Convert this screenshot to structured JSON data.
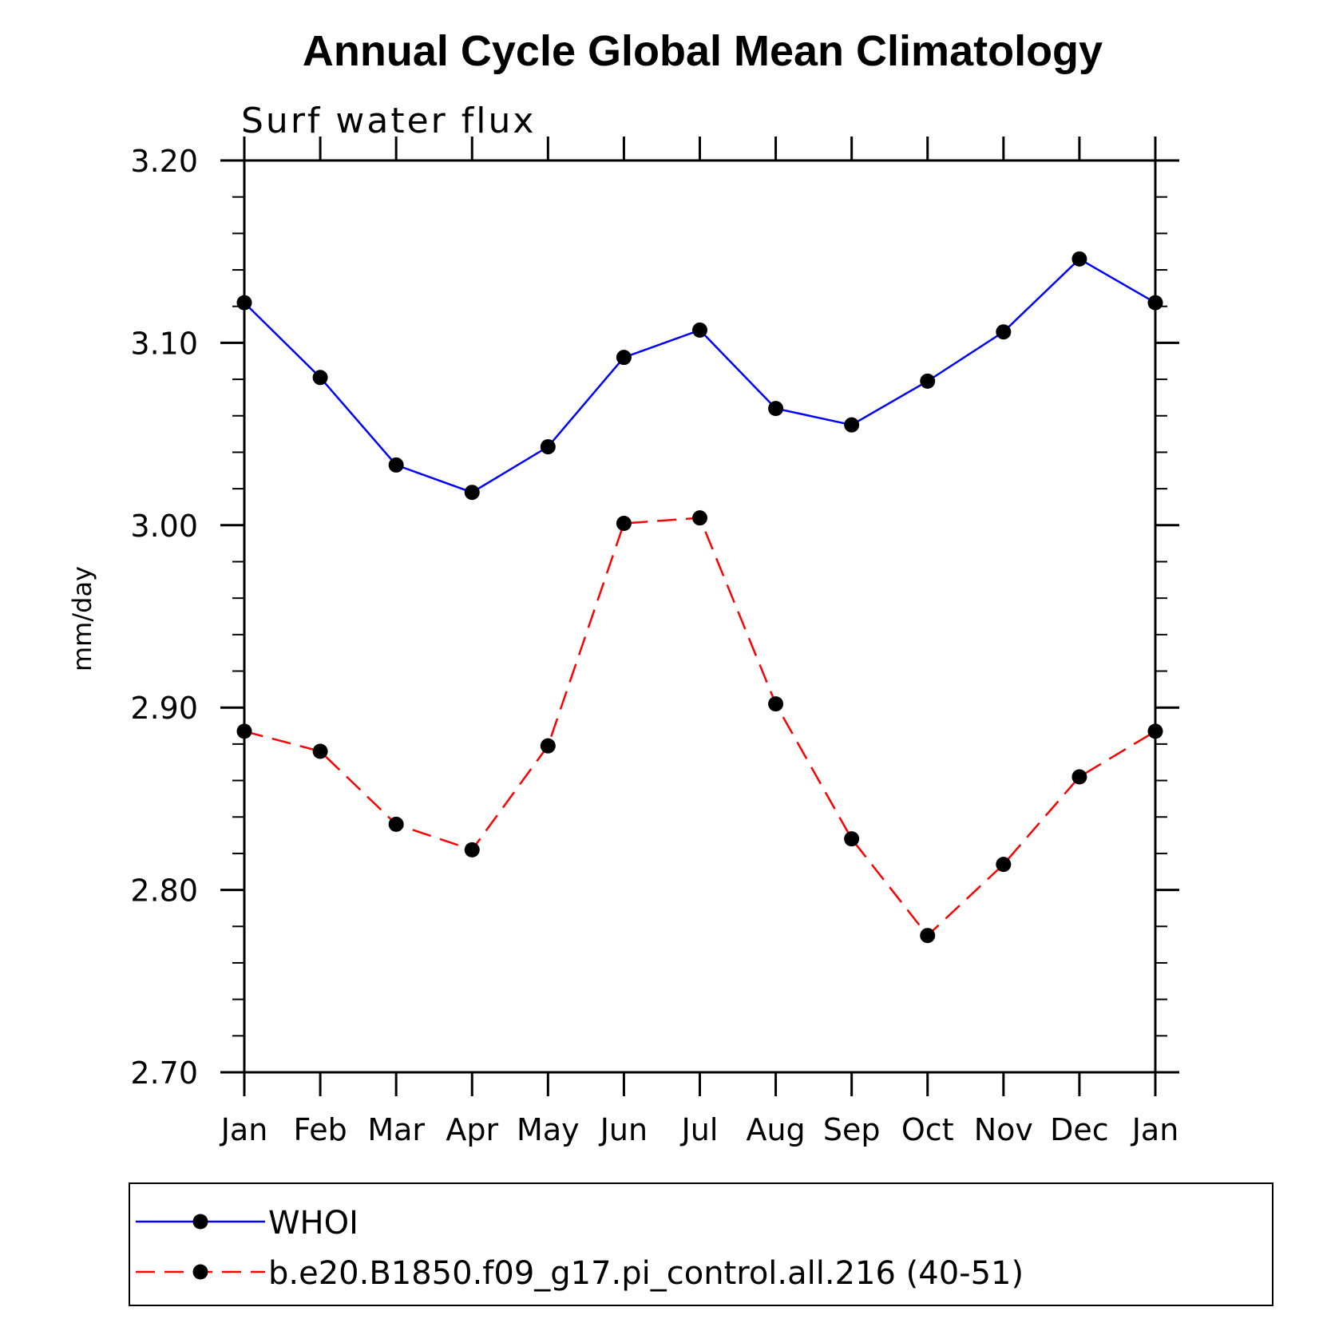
{
  "chart_data": {
    "type": "line",
    "title": "Annual Cycle Global Mean Climatology",
    "subtitle": "Surf water flux",
    "ylabel": "mm/day",
    "xlabel": "",
    "categories": [
      "Jan",
      "Feb",
      "Mar",
      "Apr",
      "May",
      "Jun",
      "Jul",
      "Aug",
      "Sep",
      "Oct",
      "Nov",
      "Dec",
      "Jan"
    ],
    "ylim": [
      2.7,
      3.2
    ],
    "y_ticks": [
      "2.70",
      "2.80",
      "2.90",
      "3.00",
      "3.10",
      "3.20"
    ],
    "legend_position": "bottom",
    "series": [
      {
        "name": "WHOI",
        "color": "#0000ff",
        "line_style": "solid",
        "marker": "filled-circle",
        "values": [
          3.122,
          3.081,
          3.033,
          3.018,
          3.043,
          3.092,
          3.107,
          3.064,
          3.055,
          3.079,
          3.106,
          3.146,
          3.122
        ]
      },
      {
        "name": "b.e20.B1850.f09_g17.pi_control.all.216 (40-51)",
        "color": "#ff0000",
        "line_style": "dashed",
        "marker": "filled-circle",
        "values": [
          2.887,
          2.876,
          2.836,
          2.822,
          2.879,
          3.001,
          3.004,
          2.902,
          2.828,
          2.775,
          2.814,
          2.862,
          2.887
        ]
      }
    ]
  }
}
